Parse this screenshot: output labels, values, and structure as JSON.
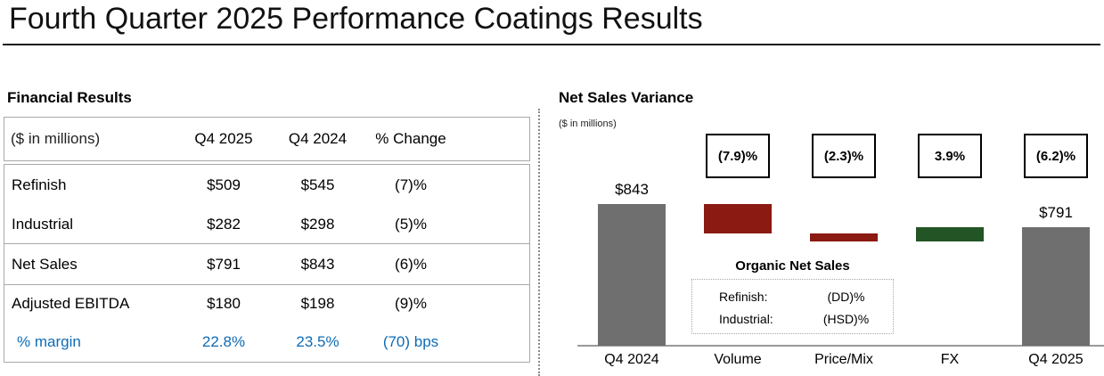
{
  "page_title": "Fourth Quarter 2025 Performance Coatings Results",
  "financial": {
    "section_title": "Financial Results",
    "units_note": "($ in millions)",
    "columns": [
      "Q4 2025",
      "Q4 2024",
      "% Change"
    ],
    "rows": [
      {
        "label": "Refinish",
        "y2025": "$509",
        "y2024": "$545",
        "change": "(7)%"
      },
      {
        "label": "Industrial",
        "y2025": "$282",
        "y2024": "$298",
        "change": "(5)%"
      },
      {
        "label": "Net Sales",
        "y2025": "$791",
        "y2024": "$843",
        "change": "(6)%"
      },
      {
        "label": "Adjusted EBITDA",
        "y2025": "$180",
        "y2024": "$198",
        "change": "(9)%"
      },
      {
        "label": "% margin",
        "y2025": "22.8%",
        "y2024": "23.5%",
        "change": "(70) bps"
      }
    ]
  },
  "variance": {
    "section_title": "Net Sales Variance",
    "units_note": "($ in millions)"
  },
  "chart_data": {
    "type": "waterfall",
    "title": "Net Sales Variance",
    "units": "$ in millions",
    "categories": [
      "Q4 2024",
      "Volume",
      "Price/Mix",
      "FX",
      "Q4 2025"
    ],
    "start_value": 843,
    "end_value": 791,
    "start_label": "$843",
    "end_label": "$791",
    "steps": [
      {
        "label": "Volume",
        "pct": -7.9,
        "pct_label": "(7.9)%",
        "color": "#8a1a12"
      },
      {
        "label": "Price/Mix",
        "pct": -2.3,
        "pct_label": "(2.3)%",
        "color": "#8a1a12"
      },
      {
        "label": "FX",
        "pct": 3.9,
        "pct_label": "3.9%",
        "color": "#235425"
      }
    ],
    "end_pct_label": "(6.2)%",
    "total_bar_color": "#6f6f6f",
    "ylim_hint": [
      520,
      880
    ],
    "grid": false,
    "annotation": {
      "title": "Organic Net Sales",
      "rows": [
        {
          "label": "Refinish:",
          "value": "(DD)%"
        },
        {
          "label": "Industrial:",
          "value": "(HSD)%"
        }
      ]
    }
  },
  "colors": {
    "accent_blue": "#0e6bb5",
    "decrease_red": "#8a1a12",
    "increase_green": "#235425",
    "total_gray": "#6f6f6f",
    "axis_gray": "#9a9a9a"
  }
}
